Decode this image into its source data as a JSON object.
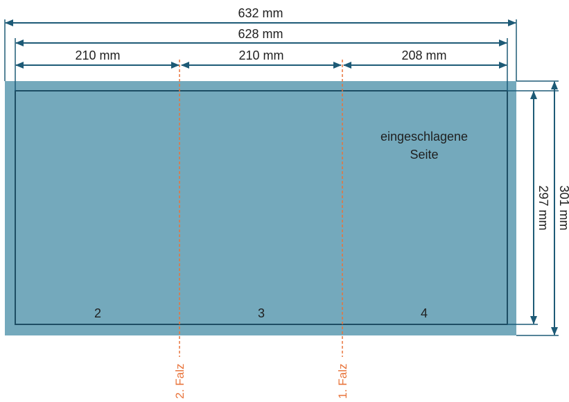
{
  "colors": {
    "sheet_fill": "#74a9bc",
    "sheet_outline": "#1d4d63",
    "dimension_line": "#1d5a76",
    "fold_line": "#e8743b",
    "text": "#1f1f1f"
  },
  "dimensions": {
    "total_width": "632 mm",
    "trim_width": "628 mm",
    "panel_left": "210 mm",
    "panel_middle": "210 mm",
    "panel_right": "208 mm",
    "trim_height": "297 mm",
    "total_height": "301 mm"
  },
  "panels": [
    {
      "number": "2"
    },
    {
      "number": "3"
    },
    {
      "number": "4"
    }
  ],
  "annotation": {
    "line1": "eingeschlagene",
    "line2": "Seite"
  },
  "folds": {
    "first": "1. Falz",
    "second": "2. Falz"
  }
}
